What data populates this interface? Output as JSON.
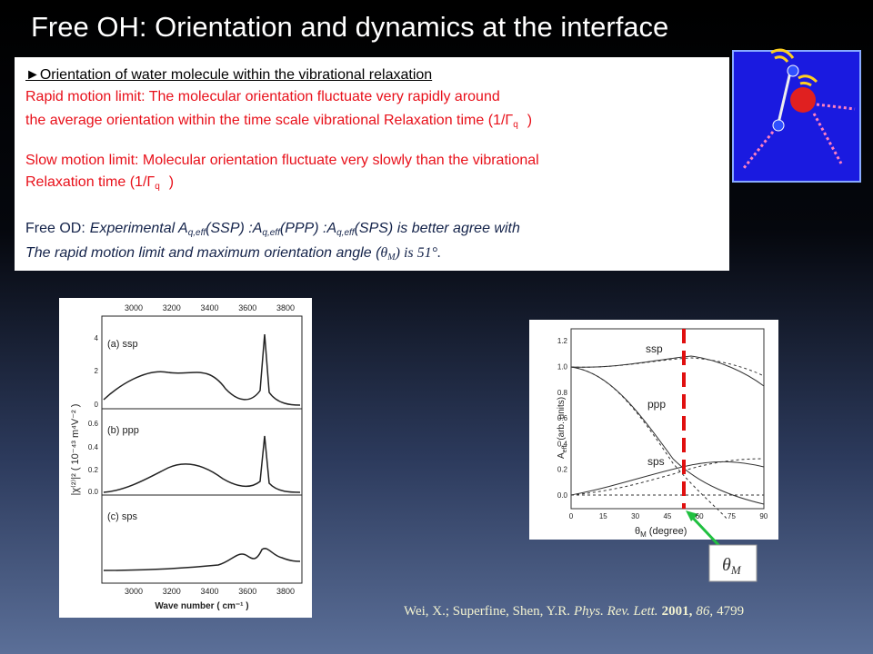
{
  "title": "Free OH: Orientation and dynamics at the interface",
  "textbox": {
    "heading": "►Orientation of water molecule within the vibrational  relaxation",
    "rapid_1": "Rapid motion limit: The molecular orientation fluctuate very rapidly around",
    "rapid_2": [
      "the average orientation within the time scale vibrational Relaxation time (1/Γ",
      "q",
      ")"
    ],
    "slow_1": "Slow motion limit: Molecular orientation fluctuate very slowly than the vibrational",
    "slow_2": [
      "Relaxation time (1/Γ",
      "q",
      ")"
    ],
    "freeod_1": [
      "Free OD:",
      "Experimental A",
      "q,eff",
      "(SSP) :A",
      "q,eff",
      "(PPP) :A",
      "q,eff",
      "(SPS) is better agree with"
    ],
    "freeod_2": [
      "The rapid motion limit and maximum orientation angle (",
      "θ",
      "M",
      ") is 51°."
    ]
  },
  "left_figure": {
    "xticks": [
      "3000",
      "3200",
      "3400",
      "3600",
      "3800"
    ],
    "xlabel": "Wave number  ( cm⁻¹ )",
    "ylabel": "|χ⁽²⁾|²  ( 10⁻⁴³ m⁴V⁻² )",
    "panels": [
      {
        "label": "(a) ssp",
        "yticks": [
          "0",
          "2",
          "4"
        ]
      },
      {
        "label": "(b) ppp",
        "yticks": [
          "0.0",
          "0.2",
          "0.4",
          "0.6"
        ]
      },
      {
        "label": "(c) sps"
      }
    ]
  },
  "right_figure": {
    "yticks": [
      "0.0",
      "0.2",
      "0.4",
      "0.6",
      "0.8",
      "1.0",
      "1.2"
    ],
    "xticks": [
      "0",
      "15",
      "30",
      "45",
      "60",
      "75",
      "90"
    ],
    "xlabel": [
      "θ",
      "M",
      "(degree)"
    ],
    "ylabel": [
      "A",
      "eff",
      "(arb. units)"
    ],
    "curves": [
      "ssp",
      "ppp",
      "sps"
    ],
    "marker": [
      "θ",
      "M"
    ]
  },
  "citation": [
    "Wei, X.; Superfine, Shen, Y.R.",
    "Phys. Rev. Lett.",
    "2001,",
    "86,",
    "4799"
  ]
}
